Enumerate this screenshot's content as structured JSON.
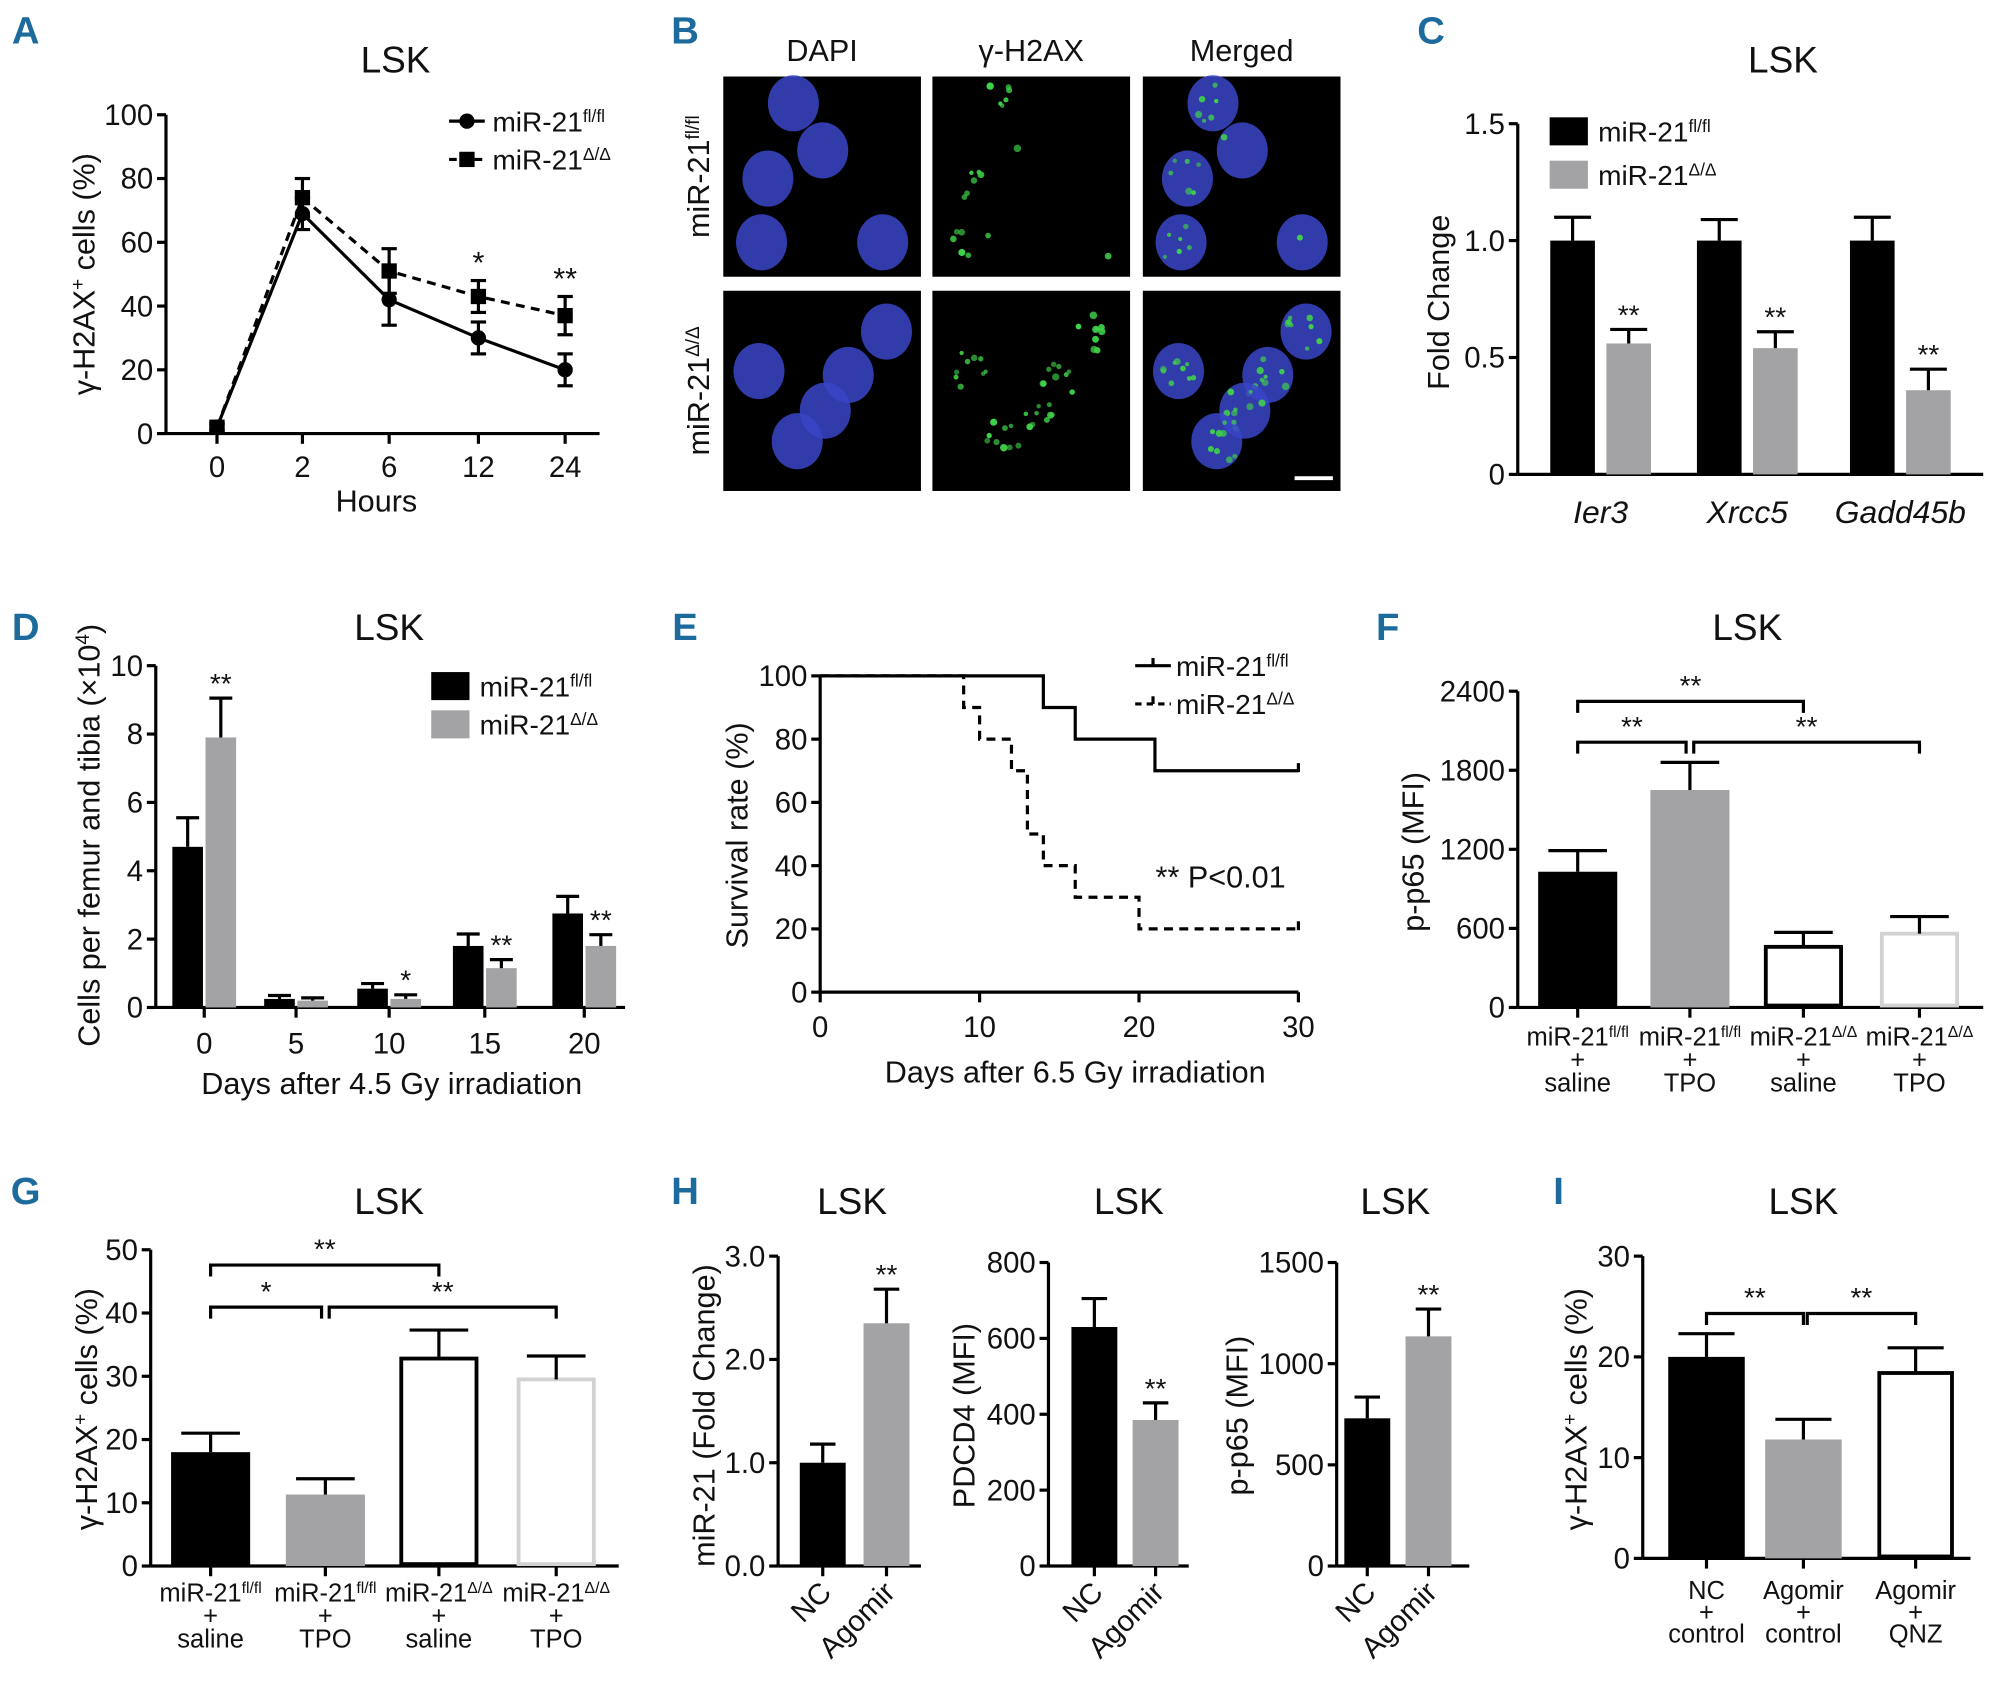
{
  "figure": {
    "panel_letters": [
      "A",
      "B",
      "C",
      "D",
      "E",
      "F",
      "G",
      "H",
      "I"
    ],
    "colors": {
      "letter": "#1d6a9c",
      "black": "#000000",
      "gray": "#a3a3a6",
      "light_gray": "#d2d2d2",
      "white": "#ffffff",
      "dapi": "#3a45c8",
      "gh2ax": "#3fd24a"
    }
  },
  "chart_data": [
    {
      "panel": "A",
      "type": "line",
      "title": "LSK",
      "xlabel": "Hours",
      "ylabel": [
        {
          "t": "γ-H2AX"
        },
        {
          "t": "+",
          "sup": true
        },
        {
          "t": " cells (%)"
        }
      ],
      "categories": [
        "0",
        "2",
        "6",
        "12",
        "24"
      ],
      "ylim": [
        0,
        100
      ],
      "y_ticks": [
        "0",
        "20",
        "40",
        "60",
        "80",
        "100"
      ],
      "series": [
        {
          "name": [
            {
              "t": "miR-21"
            },
            {
              "t": "fl/fl",
              "sup": true
            }
          ],
          "values": [
            2,
            69,
            42,
            30,
            20
          ],
          "errors": [
            1,
            5,
            8,
            5,
            5
          ],
          "marker": "circle",
          "line": "solid"
        },
        {
          "name": [
            {
              "t": "miR-21"
            },
            {
              "t": "Δ/Δ",
              "sup": true
            }
          ],
          "values": [
            2,
            74,
            51,
            43,
            37
          ],
          "errors": [
            1,
            6,
            7,
            5,
            6
          ],
          "marker": "square",
          "line": "dashed"
        }
      ],
      "annotations": [
        {
          "category": "12",
          "text": "*"
        },
        {
          "category": "24",
          "text": "**"
        }
      ]
    },
    {
      "panel": "B",
      "type": "image-grid",
      "columns": [
        "DAPI",
        "γ-H2AX",
        "Merged"
      ],
      "rows": [
        [
          {
            "t": "miR-21"
          },
          {
            "t": "fl/fl",
            "sup": true
          }
        ],
        [
          {
            "t": "miR-21"
          },
          {
            "t": "Δ/Δ",
            "sup": true
          }
        ]
      ]
    },
    {
      "panel": "C",
      "type": "bar",
      "title": "LSK",
      "ylabel": "Fold Change",
      "categories": [
        "Ier3",
        "Xrcc5",
        "Gadd45b"
      ],
      "ylim": [
        0,
        1.5
      ],
      "y_ticks": [
        "0",
        "0.5",
        "1.0",
        "1.5"
      ],
      "series": [
        {
          "name": [
            {
              "t": "miR-21"
            },
            {
              "t": "fl/fl",
              "sup": true
            }
          ],
          "values": [
            1.0,
            1.0,
            1.0
          ],
          "errors": [
            0.1,
            0.09,
            0.1
          ],
          "fill": "#000000"
        },
        {
          "name": [
            {
              "t": "miR-21"
            },
            {
              "t": "Δ/Δ",
              "sup": true
            }
          ],
          "values": [
            0.56,
            0.54,
            0.36
          ],
          "errors": [
            0.06,
            0.07,
            0.09
          ],
          "fill": "#a3a3a6",
          "stars": [
            "**",
            "**",
            "**"
          ]
        }
      ]
    },
    {
      "panel": "D",
      "type": "bar",
      "title": "LSK",
      "xlabel": "Days after 4.5 Gy irradiation",
      "ylabel": [
        {
          "t": "Cells per femur and tibia (×10"
        },
        {
          "t": "4",
          "sup": true
        },
        {
          "t": ")"
        }
      ],
      "categories": [
        "0",
        "5",
        "10",
        "15",
        "20"
      ],
      "ylim": [
        0,
        10
      ],
      "y_ticks": [
        "0",
        "2",
        "4",
        "6",
        "8",
        "10"
      ],
      "series": [
        {
          "name": [
            {
              "t": "miR-21"
            },
            {
              "t": "fl/fl",
              "sup": true
            }
          ],
          "values": [
            4.7,
            0.25,
            0.55,
            1.8,
            2.75
          ],
          "errors": [
            0.85,
            0.1,
            0.15,
            0.35,
            0.5
          ],
          "fill": "#000000"
        },
        {
          "name": [
            {
              "t": "miR-21"
            },
            {
              "t": "Δ/Δ",
              "sup": true
            }
          ],
          "values": [
            7.9,
            0.2,
            0.25,
            1.15,
            1.8
          ],
          "errors": [
            1.15,
            0.08,
            0.12,
            0.25,
            0.33
          ],
          "fill": "#a3a3a6",
          "stars": [
            "**",
            "",
            "*",
            "**",
            "**"
          ]
        }
      ]
    },
    {
      "panel": "E",
      "type": "line",
      "subtype": "survival-step",
      "xlabel": "Days after 6.5 Gy irradiation",
      "ylabel": "Survival rate (%)",
      "xlim": [
        0,
        30
      ],
      "x_ticks": [
        "0",
        "10",
        "20",
        "30"
      ],
      "ylim": [
        0,
        100
      ],
      "y_ticks": [
        "0",
        "20",
        "40",
        "60",
        "80",
        "100"
      ],
      "series": [
        {
          "name": [
            {
              "t": "miR-21"
            },
            {
              "t": "fl/fl",
              "sup": true
            }
          ],
          "times": [
            0,
            14,
            16,
            21,
            30
          ],
          "values": [
            100,
            90,
            80,
            70,
            70
          ],
          "line": "solid"
        },
        {
          "name": [
            {
              "t": "miR-21"
            },
            {
              "t": "Δ/Δ",
              "sup": true
            }
          ],
          "times": [
            0,
            9,
            10,
            12,
            13,
            14,
            16,
            20,
            30
          ],
          "values": [
            100,
            90,
            80,
            70,
            50,
            40,
            30,
            20,
            20
          ],
          "line": "dashed"
        }
      ],
      "annotation": "** P<0.01"
    },
    {
      "panel": "F",
      "type": "bar",
      "title": "LSK",
      "ylabel": "p-p65 (MFI)",
      "ylim": [
        0,
        2400
      ],
      "y_ticks": [
        "0",
        "600",
        "1200",
        "1800",
        "2400"
      ],
      "bars": [
        {
          "lines": [
            [
              {
                "t": "miR-21"
              },
              {
                "t": "fl/fl",
                "sup": true
              }
            ],
            "+",
            "saline"
          ],
          "value": 1030,
          "error": 160,
          "fill": "#000000",
          "stroke": "#000000"
        },
        {
          "lines": [
            [
              {
                "t": "miR-21"
              },
              {
                "t": "fl/fl",
                "sup": true
              }
            ],
            "+",
            "TPO"
          ],
          "value": 1650,
          "error": 210,
          "fill": "#a3a3a6",
          "stroke": "#a3a3a6"
        },
        {
          "lines": [
            [
              {
                "t": "miR-21"
              },
              {
                "t": "Δ/Δ",
                "sup": true
              }
            ],
            "+",
            "saline"
          ],
          "value": 460,
          "error": 110,
          "fill": "#ffffff",
          "stroke": "#000000"
        },
        {
          "lines": [
            [
              {
                "t": "miR-21"
              },
              {
                "t": "Δ/Δ",
                "sup": true
              }
            ],
            "+",
            "TPO"
          ],
          "value": 560,
          "error": 130,
          "fill": "#ffffff",
          "stroke": "#d2d2d2"
        }
      ],
      "brackets": [
        {
          "from": 0,
          "to": 2,
          "level": 2,
          "text": "**"
        },
        {
          "from": 0,
          "to": 1,
          "level": 1,
          "text": "**"
        },
        {
          "from": 1,
          "to": 3,
          "level": 1,
          "text": "**"
        }
      ]
    },
    {
      "panel": "G",
      "type": "bar",
      "title": "LSK",
      "ylabel": [
        {
          "t": "γ-H2AX"
        },
        {
          "t": "+",
          "sup": true
        },
        {
          "t": " cells (%)"
        }
      ],
      "ylim": [
        0,
        50
      ],
      "y_ticks": [
        "0",
        "10",
        "20",
        "30",
        "40",
        "50"
      ],
      "bars": [
        {
          "lines": [
            [
              {
                "t": "miR-21"
              },
              {
                "t": "fl/fl",
                "sup": true
              }
            ],
            "+",
            "saline"
          ],
          "value": 18,
          "error": 3,
          "fill": "#000000",
          "stroke": "#000000"
        },
        {
          "lines": [
            [
              {
                "t": "miR-21"
              },
              {
                "t": "fl/fl",
                "sup": true
              }
            ],
            "+",
            "TPO"
          ],
          "value": 11.3,
          "error": 2.5,
          "fill": "#a3a3a6",
          "stroke": "#a3a3a6"
        },
        {
          "lines": [
            [
              {
                "t": "miR-21"
              },
              {
                "t": "Δ/Δ",
                "sup": true
              }
            ],
            "+",
            "saline"
          ],
          "value": 32.8,
          "error": 4.5,
          "fill": "#ffffff",
          "stroke": "#000000"
        },
        {
          "lines": [
            [
              {
                "t": "miR-21"
              },
              {
                "t": "Δ/Δ",
                "sup": true
              }
            ],
            "+",
            "TPO"
          ],
          "value": 29.5,
          "error": 3.7,
          "fill": "#ffffff",
          "stroke": "#d2d2d2"
        }
      ],
      "brackets": [
        {
          "from": 0,
          "to": 2,
          "level": 2,
          "text": "**"
        },
        {
          "from": 0,
          "to": 1,
          "level": 1,
          "text": "*"
        },
        {
          "from": 1,
          "to": 3,
          "level": 1,
          "text": "**"
        }
      ]
    },
    {
      "panel": "H",
      "sub": 1,
      "type": "bar",
      "title": "LSK",
      "ylabel": "miR-21 (Fold Change)",
      "ylim": [
        0,
        3.0
      ],
      "y_ticks": [
        "0.0",
        "1.0",
        "2.0",
        "3.0"
      ],
      "bars": [
        {
          "lines": [
            "NC"
          ],
          "value": 1.0,
          "error": 0.18,
          "fill": "#000000",
          "stroke": "#000000"
        },
        {
          "lines": [
            "Agomir"
          ],
          "value": 2.35,
          "error": 0.33,
          "fill": "#a3a3a6",
          "stroke": "#a3a3a6",
          "star": "**"
        }
      ]
    },
    {
      "panel": "H",
      "sub": 2,
      "type": "bar",
      "title": "LSK",
      "ylabel": "PDCD4 (MFI)",
      "ylim": [
        0,
        800
      ],
      "y_ticks": [
        "0",
        "200",
        "400",
        "600",
        "800"
      ],
      "bars": [
        {
          "lines": [
            "NC"
          ],
          "value": 630,
          "error": 75,
          "fill": "#000000",
          "stroke": "#000000"
        },
        {
          "lines": [
            "Agomir"
          ],
          "value": 385,
          "error": 45,
          "fill": "#a3a3a6",
          "stroke": "#a3a3a6",
          "star": "**"
        }
      ]
    },
    {
      "panel": "H",
      "sub": 3,
      "type": "bar",
      "title": "LSK",
      "ylabel": "p-p65 (MFI)",
      "ylim": [
        0,
        1500
      ],
      "y_ticks": [
        "0",
        "500",
        "1000",
        "1500"
      ],
      "bars": [
        {
          "lines": [
            "NC"
          ],
          "value": 730,
          "error": 105,
          "fill": "#000000",
          "stroke": "#000000"
        },
        {
          "lines": [
            "Agomir"
          ],
          "value": 1135,
          "error": 135,
          "fill": "#a3a3a6",
          "stroke": "#a3a3a6",
          "star": "**"
        }
      ]
    },
    {
      "panel": "I",
      "type": "bar",
      "title": "LSK",
      "ylabel": [
        {
          "t": "γ-H2AX"
        },
        {
          "t": "+",
          "sup": true
        },
        {
          "t": " cells (%)"
        }
      ],
      "ylim": [
        0,
        30
      ],
      "y_ticks": [
        "0",
        "10",
        "20",
        "30"
      ],
      "bars": [
        {
          "lines": [
            "NC",
            "+",
            "control"
          ],
          "value": 20,
          "error": 2.3,
          "fill": "#000000",
          "stroke": "#000000"
        },
        {
          "lines": [
            "Agomir",
            "+",
            "control"
          ],
          "value": 11.8,
          "error": 2.0,
          "fill": "#a3a3a6",
          "stroke": "#a3a3a6"
        },
        {
          "lines": [
            "Agomir",
            "+",
            "QNZ"
          ],
          "value": 18.4,
          "error": 2.5,
          "fill": "#ffffff",
          "stroke": "#000000"
        }
      ],
      "brackets": [
        {
          "from": 0,
          "to": 1,
          "level": 1,
          "text": "**"
        },
        {
          "from": 1,
          "to": 2,
          "level": 1,
          "text": "**"
        }
      ]
    }
  ]
}
